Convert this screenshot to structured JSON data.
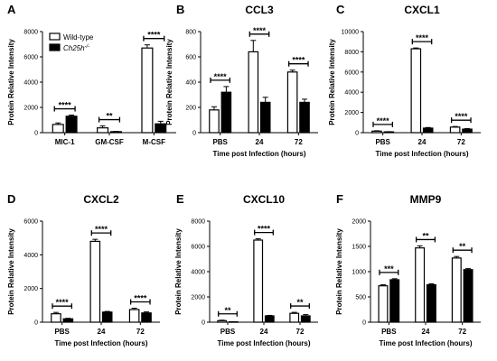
{
  "figure": {
    "series_names": [
      "Wild-type",
      "Ch25h-/-"
    ],
    "colors": {
      "wild_type_fill": "#ffffff",
      "knockout_fill": "#000000",
      "stroke": "#000000"
    }
  },
  "chart_data": [
    {
      "panel": "A",
      "type": "bar",
      "title": "",
      "xlabel": "",
      "ylabel": "Protein Relative Intensity",
      "ylim": [
        0,
        8000
      ],
      "yticks": [
        "0",
        "2000",
        "4000",
        "6000",
        "8000"
      ],
      "categories": [
        "MIC-1",
        "GM-CSF",
        "M-CSF"
      ],
      "series": [
        {
          "name": "Wild-type",
          "values": [
            650,
            380,
            6700
          ],
          "errors": [
            120,
            150,
            250
          ]
        },
        {
          "name": "Ch25h-/-",
          "values": [
            1300,
            80,
            700
          ],
          "errors": [
            90,
            20,
            200
          ]
        }
      ],
      "significance": [
        "****",
        "**",
        "****"
      ],
      "legend": "top-left"
    },
    {
      "panel": "B",
      "type": "bar",
      "title": "CCL3",
      "xlabel": "Time post Infection (hours)",
      "ylabel": "Protein Relative Intensity",
      "ylim": [
        0,
        800
      ],
      "yticks": [
        "0",
        "200",
        "400",
        "600",
        "800"
      ],
      "categories": [
        "PBS",
        "24",
        "72"
      ],
      "series": [
        {
          "name": "Wild-type",
          "values": [
            180,
            640,
            480
          ],
          "errors": [
            25,
            90,
            15
          ]
        },
        {
          "name": "Ch25h-/-",
          "values": [
            320,
            240,
            240
          ],
          "errors": [
            45,
            40,
            25
          ]
        }
      ],
      "significance": [
        "****",
        "****",
        "****"
      ]
    },
    {
      "panel": "C",
      "type": "bar",
      "title": "CXCL1",
      "xlabel": "Time post Infection (hours)",
      "ylabel": "Protein Relative Intensity",
      "ylim": [
        0,
        10000
      ],
      "yticks": [
        "0",
        "2000",
        "4000",
        "6000",
        "8000",
        "10000"
      ],
      "categories": [
        "PBS",
        "24",
        "72"
      ],
      "series": [
        {
          "name": "Wild-type",
          "values": [
            150,
            8300,
            550
          ],
          "errors": [
            40,
            80,
            60
          ]
        },
        {
          "name": "Ch25h-/-",
          "values": [
            80,
            450,
            350
          ],
          "errors": [
            20,
            60,
            50
          ]
        }
      ],
      "significance": [
        "****",
        "****",
        "****"
      ]
    },
    {
      "panel": "D",
      "type": "bar",
      "title": "CXCL2",
      "xlabel": "Time post Infection (hours)",
      "ylabel": "Protein Relative Intensity",
      "ylim": [
        0,
        6000
      ],
      "yticks": [
        "0",
        "2000",
        "4000",
        "6000"
      ],
      "categories": [
        "PBS",
        "24",
        "72"
      ],
      "series": [
        {
          "name": "Wild-type",
          "values": [
            500,
            4800,
            750
          ],
          "errors": [
            80,
            120,
            80
          ]
        },
        {
          "name": "Ch25h-/-",
          "values": [
            200,
            600,
            550
          ],
          "errors": [
            30,
            40,
            60
          ]
        }
      ],
      "significance": [
        "****",
        "****",
        "****"
      ]
    },
    {
      "panel": "E",
      "type": "bar",
      "title": "CXCL10",
      "xlabel": "Time post Infection (hours)",
      "ylabel": "Protein Relative Intensity",
      "ylim": [
        0,
        8000
      ],
      "yticks": [
        "0",
        "2000",
        "4000",
        "6000",
        "8000"
      ],
      "categories": [
        "PBS",
        "24",
        "72"
      ],
      "series": [
        {
          "name": "Wild-type",
          "values": [
            120,
            6500,
            700
          ],
          "errors": [
            40,
            100,
            80
          ]
        },
        {
          "name": "Ch25h-/-",
          "values": [
            30,
            500,
            500
          ],
          "errors": [
            10,
            40,
            100
          ]
        }
      ],
      "significance": [
        "**",
        "****",
        "**"
      ]
    },
    {
      "panel": "F",
      "type": "bar",
      "title": "MMP9",
      "xlabel": "Time post Infection (hours)",
      "ylabel": "Protein Relative Intensity",
      "ylim": [
        0,
        2000
      ],
      "yticks": [
        "0",
        "500",
        "1000",
        "1500",
        "2000"
      ],
      "categories": [
        "PBS",
        "24",
        "72"
      ],
      "series": [
        {
          "name": "Wild-type",
          "values": [
            720,
            1470,
            1270
          ],
          "errors": [
            20,
            40,
            30
          ]
        },
        {
          "name": "Ch25h-/-",
          "values": [
            840,
            740,
            1040
          ],
          "errors": [
            20,
            20,
            20
          ]
        }
      ],
      "significance": [
        "***",
        "**",
        "**"
      ]
    }
  ]
}
